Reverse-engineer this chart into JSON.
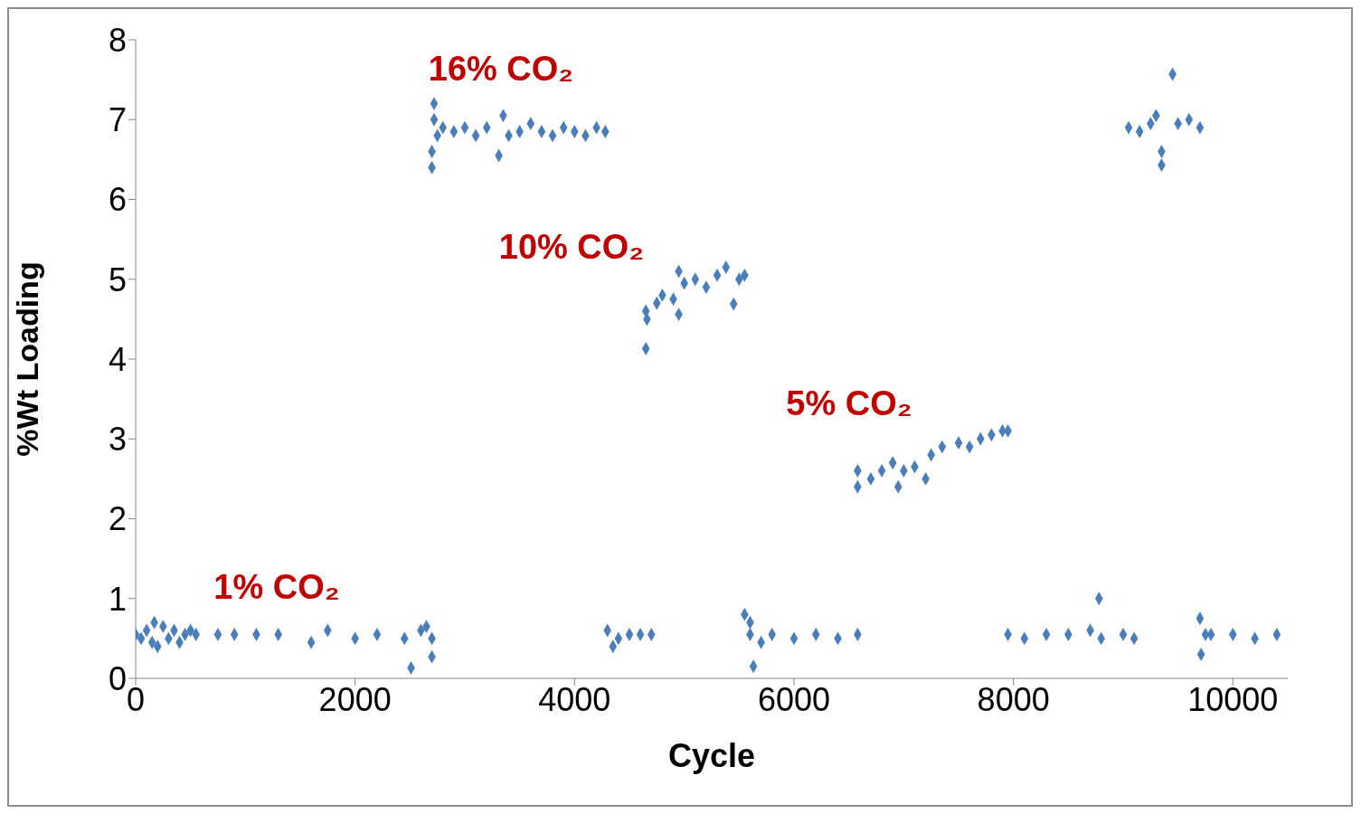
{
  "chart_data": {
    "type": "scatter",
    "xlabel": "Cycle",
    "ylabel": "%Wt Loading",
    "xlim": [
      0,
      10500
    ],
    "ylim": [
      0,
      8
    ],
    "xticks": [
      0,
      2000,
      4000,
      6000,
      8000,
      10000
    ],
    "yticks": [
      0,
      1,
      2,
      3,
      4,
      5,
      6,
      7,
      8
    ],
    "marker": "diamond",
    "annotations": [
      "16% CO₂",
      "10% CO₂",
      "5% CO₂",
      "1% CO₂"
    ],
    "series": [
      {
        "color": "#4a7ebb",
        "x": [
          0,
          50,
          100,
          150,
          170,
          200,
          250,
          300,
          350,
          400,
          450,
          500,
          550,
          750,
          900,
          1100,
          1300,
          1600,
          1750,
          2000,
          2200,
          2450,
          2510,
          2600,
          2650,
          2700,
          2700,
          2700,
          2700,
          2720,
          2720,
          2750,
          2800,
          2900,
          3000,
          3100,
          3200,
          3310,
          3350,
          3400,
          3500,
          3600,
          3700,
          3800,
          3900,
          4000,
          4100,
          4200,
          4280,
          4300,
          4350,
          4400,
          4500,
          4600,
          4700,
          4650,
          4660,
          4650,
          4750,
          4800,
          4900,
          4950,
          4950,
          5000,
          5100,
          5200,
          5300,
          5380,
          5450,
          5500,
          5550,
          5550,
          5600,
          5630,
          5600,
          5700,
          5800,
          6000,
          6200,
          6400,
          6580,
          6580,
          6580,
          6700,
          6800,
          6900,
          6950,
          7000,
          7100,
          7200,
          7250,
          7350,
          7500,
          7600,
          7700,
          7800,
          7900,
          7950,
          7950,
          8100,
          8300,
          8500,
          8700,
          8780,
          8800,
          9000,
          9100,
          9050,
          9150,
          9250,
          9300,
          9350,
          9350,
          9450,
          9500,
          9600,
          9700,
          9700,
          9710,
          9750,
          9800,
          10000,
          10200,
          10400
        ],
        "values": [
          0.55,
          0.5,
          0.6,
          0.45,
          0.7,
          0.4,
          0.65,
          0.5,
          0.6,
          0.45,
          0.55,
          0.6,
          0.55,
          0.55,
          0.55,
          0.55,
          0.55,
          0.45,
          0.6,
          0.5,
          0.55,
          0.5,
          0.13,
          0.6,
          0.65,
          0.5,
          0.27,
          6.4,
          6.6,
          7.2,
          7.0,
          6.8,
          6.9,
          6.85,
          6.9,
          6.8,
          6.9,
          6.55,
          7.05,
          6.8,
          6.85,
          6.95,
          6.85,
          6.8,
          6.9,
          6.85,
          6.8,
          6.9,
          6.85,
          0.6,
          0.4,
          0.5,
          0.55,
          0.55,
          0.55,
          4.6,
          4.5,
          4.13,
          4.7,
          4.8,
          4.75,
          4.56,
          5.1,
          4.95,
          5.0,
          4.9,
          5.05,
          5.15,
          4.69,
          5.0,
          5.05,
          0.8,
          0.7,
          0.15,
          0.55,
          0.45,
          0.55,
          0.5,
          0.55,
          0.5,
          0.55,
          2.4,
          2.6,
          2.5,
          2.6,
          2.7,
          2.4,
          2.6,
          2.65,
          2.5,
          2.8,
          2.9,
          2.95,
          2.9,
          3.0,
          3.05,
          3.1,
          3.1,
          0.55,
          0.5,
          0.55,
          0.55,
          0.6,
          1.0,
          0.5,
          0.55,
          0.5,
          6.9,
          6.85,
          6.95,
          7.05,
          6.6,
          6.43,
          7.57,
          6.95,
          7.0,
          6.9,
          0.75,
          0.3,
          0.55,
          0.55,
          0.55,
          0.5,
          0.55
        ]
      }
    ]
  }
}
